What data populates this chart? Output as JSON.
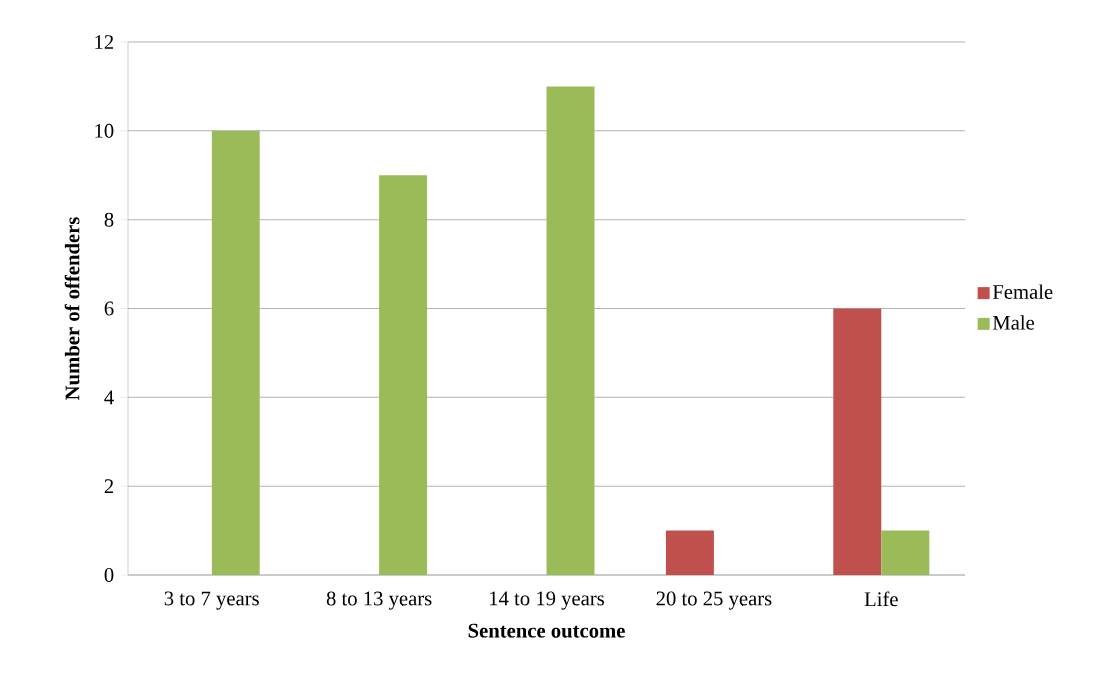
{
  "chart_data": {
    "type": "bar",
    "xlabel": "Sentence outcome",
    "ylabel": "Number of offenders",
    "categories": [
      "3 to 7 years",
      "8 to 13 years",
      "14 to 19 years",
      "20 to 25 years",
      "Life"
    ],
    "series": [
      {
        "name": "Female",
        "color": "#c0504d",
        "values": [
          null,
          null,
          null,
          1,
          6
        ]
      },
      {
        "name": "Male",
        "color": "#9bbb59",
        "values": [
          10,
          9,
          11,
          null,
          1
        ]
      }
    ],
    "ylim": [
      0,
      12
    ],
    "yticks": [
      0,
      2,
      4,
      6,
      8,
      10,
      12
    ],
    "grid": "y",
    "legend": "right"
  }
}
